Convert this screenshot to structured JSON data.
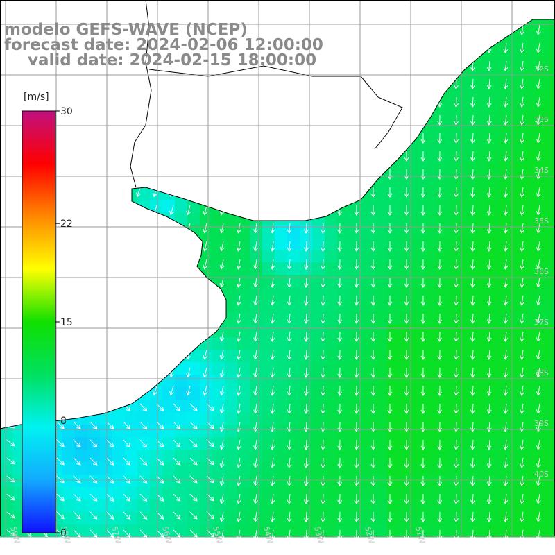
{
  "titles": {
    "model": "modelo GEFS-WAVE (NCEP)",
    "forecast": "forecast date: 2024-02-06 12:00:00",
    "valid": "valid date: 2024-02-15 18:00:00"
  },
  "colorbar": {
    "unit": "[m/s]",
    "ticks": [
      "30",
      "22",
      "15",
      "8",
      "0"
    ],
    "tick_values": [
      30,
      22,
      15,
      8,
      0
    ],
    "range": [
      0,
      30
    ],
    "stops": [
      "#1010ff",
      "#12aaff",
      "#00f2f2",
      "#00e060",
      "#10e000",
      "#ffff00",
      "#ff8800",
      "#ff0000",
      "#c01080"
    ]
  },
  "map": {
    "lon_labels": [
      "59W",
      "58W",
      "57W",
      "56W",
      "55W",
      "54W",
      "53W",
      "52W",
      "51W"
    ],
    "lat_labels": [
      "32S",
      "33S",
      "34S",
      "35S",
      "36S",
      "37S",
      "38S",
      "39S",
      "40S"
    ],
    "land_color": "#ffffff",
    "grid_color": "#999999",
    "wind_arrow_color": "#ffffff",
    "wind_direction": "southward"
  }
}
